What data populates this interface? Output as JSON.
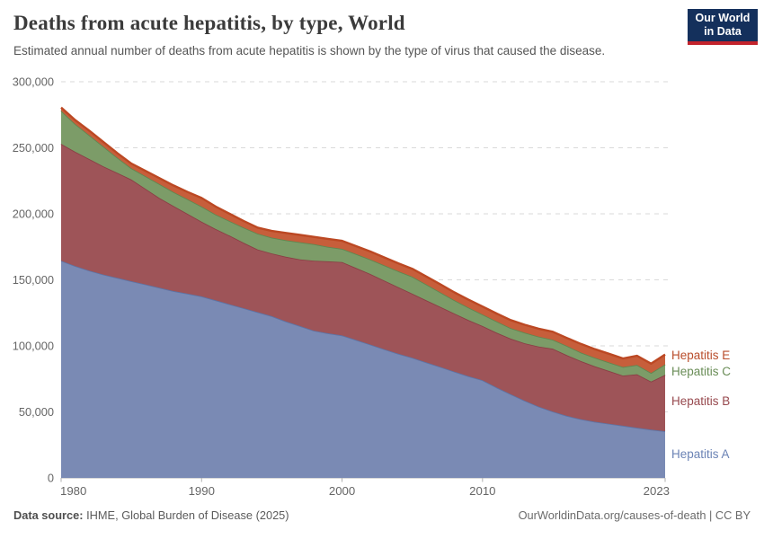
{
  "logo": {
    "line1": "Our World",
    "line2": "in Data",
    "bg_color": "#14305C",
    "bar_color": "#C3232C"
  },
  "footer": {
    "source_label": "Data source:",
    "source_text": " IHME, Global Burden of Disease (2025)",
    "url_label": "OurWorldinData.org/causes-of-death",
    "separator": " | ",
    "license_label": "CC BY"
  },
  "chart_data": {
    "type": "area",
    "stacked": true,
    "title": "Deaths from acute hepatitis, by type, World",
    "subtitle": "Estimated annual number of deaths from acute hepatitis is shown by the type of virus that caused the disease.",
    "xlabel": "",
    "ylabel": "",
    "ylim": [
      0,
      300000
    ],
    "grid": "dashed-horizontal",
    "legend_position": "right",
    "x_ticks": [
      {
        "value": 1980,
        "label": "1980"
      },
      {
        "value": 1990,
        "label": "1990"
      },
      {
        "value": 2000,
        "label": "2000"
      },
      {
        "value": 2010,
        "label": "2010"
      },
      {
        "value": 2023,
        "label": "2023"
      }
    ],
    "y_ticks": [
      {
        "value": 0,
        "label": "0"
      },
      {
        "value": 50000,
        "label": "50,000"
      },
      {
        "value": 100000,
        "label": "100,000"
      },
      {
        "value": 150000,
        "label": "150,000"
      },
      {
        "value": 200000,
        "label": "200,000"
      },
      {
        "value": 250000,
        "label": "250,000"
      },
      {
        "value": 300000,
        "label": "300,000"
      }
    ],
    "years": [
      1980,
      1981,
      1982,
      1983,
      1984,
      1985,
      1986,
      1987,
      1988,
      1989,
      1990,
      1991,
      1992,
      1993,
      1994,
      1995,
      1996,
      1997,
      1998,
      1999,
      2000,
      2001,
      2002,
      2003,
      2004,
      2005,
      2006,
      2007,
      2008,
      2009,
      2010,
      2011,
      2012,
      2013,
      2014,
      2015,
      2016,
      2017,
      2018,
      2019,
      2020,
      2021,
      2022,
      2023
    ],
    "series": [
      {
        "name": "Hepatitis A",
        "color": "#7A8AB4",
        "line_color": "#5C74A6",
        "label_color": "#6B83B5",
        "values": [
          164500,
          160500,
          157000,
          154000,
          151500,
          149000,
          146500,
          144000,
          141500,
          139500,
          137500,
          134500,
          131500,
          128500,
          125500,
          122500,
          118500,
          115000,
          111500,
          109500,
          107900,
          104500,
          101000,
          97500,
          94000,
          91000,
          87500,
          84000,
          80500,
          77000,
          74000,
          68500,
          63500,
          58500,
          54000,
          50300,
          47000,
          44500,
          42500,
          41000,
          39500,
          38000,
          36500,
          35400
        ]
      },
      {
        "name": "Hepatitis B",
        "color": "#9E5458",
        "line_color": "#8A3E44",
        "label_color": "#97494E",
        "values": [
          88500,
          86500,
          84500,
          82000,
          79500,
          77000,
          72500,
          68000,
          64500,
          60500,
          56500,
          54000,
          52000,
          49500,
          47500,
          47500,
          49000,
          50500,
          53000,
          54500,
          55600,
          54500,
          53500,
          52000,
          50500,
          48500,
          47000,
          45500,
          44000,
          42500,
          41000,
          41500,
          42000,
          43500,
          45500,
          47600,
          46000,
          44000,
          42000,
          40000,
          38000,
          40500,
          36500,
          42600
        ]
      },
      {
        "name": "Hepatitis C",
        "color": "#7C9C68",
        "line_color": "#5E8850",
        "label_color": "#6A8D57",
        "values": [
          25000,
          21000,
          18000,
          15000,
          11500,
          8500,
          9500,
          10500,
          10500,
          11000,
          11500,
          11000,
          11000,
          11500,
          12000,
          12000,
          12500,
          13000,
          12500,
          11000,
          10000,
          10500,
          11000,
          11500,
          12000,
          12900,
          12000,
          11000,
          10000,
          9500,
          8800,
          8500,
          8000,
          8000,
          7500,
          6800,
          7000,
          6500,
          6500,
          6500,
          6500,
          7000,
          6500,
          8000
        ]
      },
      {
        "name": "Hepatitis E",
        "color": "#C75E3B",
        "line_color": "#BC4823",
        "label_color": "#B94D2B",
        "values": [
          2500,
          3000,
          3500,
          3500,
          3500,
          3500,
          4000,
          4500,
          5000,
          5500,
          6500,
          6000,
          5500,
          5000,
          4500,
          5000,
          5500,
          5500,
          5500,
          6000,
          6000,
          6000,
          6000,
          6000,
          6000,
          6000,
          6000,
          6000,
          6000,
          6000,
          6000,
          6000,
          6000,
          6000,
          6000,
          6000,
          6000,
          6500,
          6500,
          6500,
          6500,
          7000,
          7000,
          7500
        ]
      }
    ]
  }
}
